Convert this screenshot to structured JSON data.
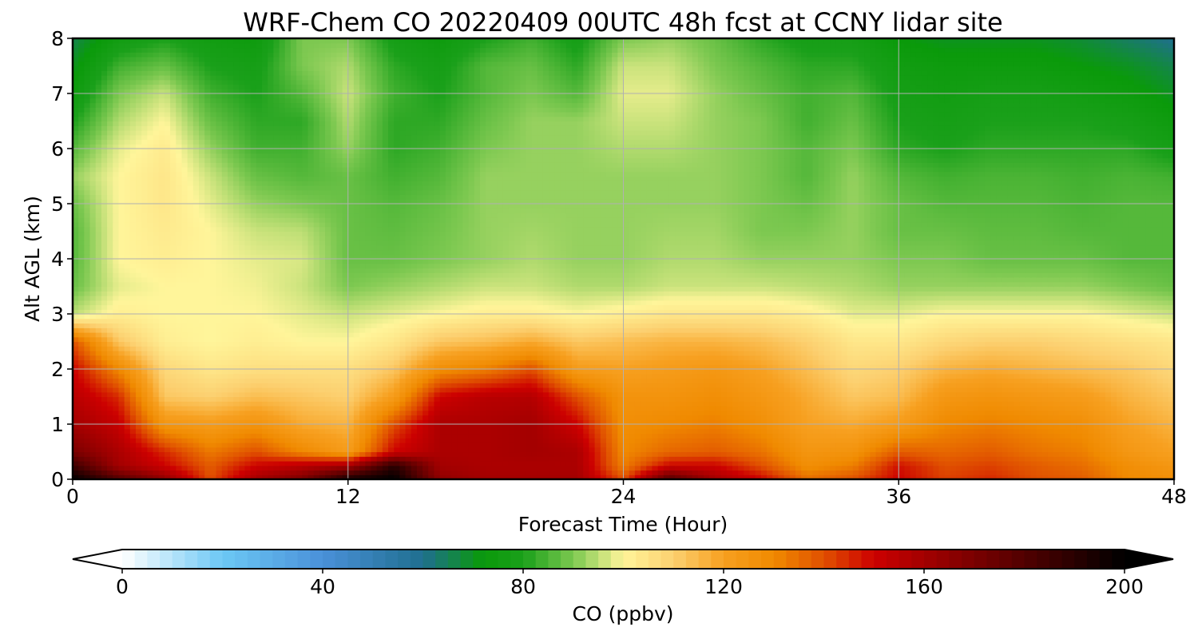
{
  "chart_data": {
    "type": "heatmap",
    "title": "WRF-Chem CO  20220409 00UTC 48h fcst at CCNY lidar site",
    "xlabel": "Forecast Time (Hour)",
    "ylabel": "Alt AGL (km)",
    "xlim": [
      0,
      48
    ],
    "ylim": [
      0,
      8
    ],
    "x_ticks": [
      "0",
      "12",
      "24",
      "36",
      "48"
    ],
    "y_ticks": [
      "0",
      "1",
      "2",
      "3",
      "4",
      "5",
      "6",
      "7",
      "8"
    ],
    "grid": true,
    "colorbar": {
      "label": "CO  (ppbv)",
      "min": 0,
      "max": 200,
      "ticks": [
        "0",
        "40",
        "80",
        "120",
        "160",
        "200"
      ],
      "extend": "both",
      "orientation": "horizontal",
      "stops": [
        {
          "value": 0,
          "color": "#ffffff"
        },
        {
          "value": 20,
          "color": "#6cc8f5"
        },
        {
          "value": 40,
          "color": "#4a90d9"
        },
        {
          "value": 60,
          "color": "#1f6f8f"
        },
        {
          "value": 72,
          "color": "#0a9a0a"
        },
        {
          "value": 80,
          "color": "#1aa01a"
        },
        {
          "value": 90,
          "color": "#7cc850"
        },
        {
          "value": 100,
          "color": "#fff59a"
        },
        {
          "value": 110,
          "color": "#fcd070"
        },
        {
          "value": 120,
          "color": "#f7a020"
        },
        {
          "value": 130,
          "color": "#f08a00"
        },
        {
          "value": 140,
          "color": "#e05000"
        },
        {
          "value": 150,
          "color": "#cc0000"
        },
        {
          "value": 170,
          "color": "#7a0000"
        },
        {
          "value": 200,
          "color": "#000000"
        }
      ]
    },
    "x": [
      0,
      2,
      4,
      6,
      8,
      10,
      12,
      14,
      16,
      18,
      20,
      22,
      24,
      26,
      28,
      30,
      32,
      34,
      36,
      38,
      40,
      42,
      44,
      46,
      48
    ],
    "y": [
      0,
      0.25,
      0.5,
      1,
      1.5,
      2,
      2.5,
      3,
      3.5,
      4,
      4.5,
      5,
      5.5,
      6,
      6.5,
      7,
      7.5,
      8
    ],
    "values": [
      [
        200,
        180,
        165,
        140,
        160,
        170,
        195,
        200,
        165,
        160,
        160,
        160,
        140,
        180,
        160,
        150,
        135,
        140,
        150,
        142,
        145,
        140,
        138,
        130,
        128
      ],
      [
        185,
        160,
        150,
        138,
        150,
        155,
        160,
        190,
        160,
        158,
        158,
        158,
        132,
        150,
        150,
        140,
        128,
        132,
        148,
        140,
        142,
        138,
        135,
        128,
        124
      ],
      [
        170,
        158,
        145,
        133,
        140,
        130,
        122,
        150,
        158,
        158,
        160,
        158,
        130,
        136,
        138,
        134,
        125,
        126,
        138,
        136,
        138,
        134,
        132,
        124,
        120
      ],
      [
        160,
        152,
        125,
        122,
        126,
        118,
        116,
        140,
        158,
        158,
        160,
        150,
        128,
        130,
        132,
        128,
        120,
        118,
        122,
        130,
        132,
        130,
        128,
        120,
        116
      ],
      [
        155,
        145,
        112,
        110,
        114,
        112,
        110,
        122,
        150,
        155,
        156,
        140,
        126,
        126,
        128,
        124,
        118,
        112,
        114,
        124,
        126,
        124,
        122,
        116,
        112
      ],
      [
        150,
        130,
        108,
        104,
        106,
        106,
        106,
        112,
        128,
        132,
        140,
        122,
        120,
        122,
        124,
        120,
        114,
        108,
        110,
        116,
        118,
        116,
        114,
        112,
        108
      ],
      [
        140,
        112,
        102,
        100,
        102,
        100,
        100,
        104,
        112,
        114,
        118,
        112,
        114,
        116,
        116,
        114,
        110,
        104,
        104,
        108,
        110,
        110,
        108,
        106,
        104
      ],
      [
        95,
        102,
        100,
        100,
        100,
        98,
        96,
        98,
        100,
        102,
        102,
        100,
        102,
        104,
        104,
        104,
        102,
        98,
        98,
        100,
        100,
        100,
        100,
        98,
        96
      ],
      [
        88,
        98,
        100,
        100,
        99,
        96,
        90,
        92,
        94,
        96,
        96,
        94,
        94,
        96,
        96,
        96,
        95,
        94,
        92,
        92,
        92,
        92,
        92,
        90,
        88
      ],
      [
        86,
        100,
        102,
        100,
        98,
        97,
        88,
        88,
        90,
        92,
        94,
        92,
        92,
        94,
        94,
        92,
        92,
        92,
        90,
        90,
        88,
        88,
        88,
        86,
        86
      ],
      [
        86,
        100,
        103,
        100,
        96,
        95,
        88,
        87,
        89,
        92,
        93,
        92,
        92,
        93,
        93,
        90,
        90,
        92,
        88,
        88,
        87,
        87,
        86,
        86,
        86
      ],
      [
        88,
        100,
        104,
        98,
        92,
        90,
        88,
        86,
        88,
        92,
        92,
        92,
        92,
        92,
        92,
        90,
        88,
        92,
        88,
        86,
        86,
        86,
        85,
        86,
        86
      ],
      [
        92,
        100,
        104,
        96,
        88,
        86,
        88,
        84,
        86,
        92,
        92,
        92,
        92,
        92,
        92,
        90,
        86,
        92,
        86,
        84,
        85,
        85,
        84,
        85,
        84
      ],
      [
        86,
        98,
        103,
        92,
        84,
        84,
        92,
        82,
        84,
        90,
        92,
        92,
        94,
        94,
        92,
        90,
        86,
        90,
        82,
        80,
        82,
        82,
        82,
        82,
        78
      ],
      [
        80,
        94,
        100,
        88,
        82,
        82,
        94,
        82,
        82,
        88,
        92,
        92,
        96,
        96,
        92,
        90,
        84,
        88,
        80,
        78,
        80,
        80,
        80,
        78,
        74
      ],
      [
        74,
        90,
        96,
        84,
        80,
        86,
        96,
        84,
        80,
        86,
        90,
        86,
        98,
        98,
        92,
        88,
        84,
        86,
        78,
        76,
        78,
        78,
        76,
        74,
        70
      ],
      [
        70,
        84,
        88,
        80,
        78,
        90,
        94,
        82,
        78,
        86,
        88,
        82,
        96,
        96,
        90,
        86,
        82,
        82,
        76,
        74,
        74,
        74,
        72,
        70,
        66
      ],
      [
        66,
        76,
        80,
        76,
        74,
        90,
        90,
        78,
        74,
        80,
        84,
        78,
        90,
        92,
        88,
        82,
        78,
        78,
        72,
        70,
        70,
        70,
        68,
        64,
        60
      ]
    ]
  }
}
